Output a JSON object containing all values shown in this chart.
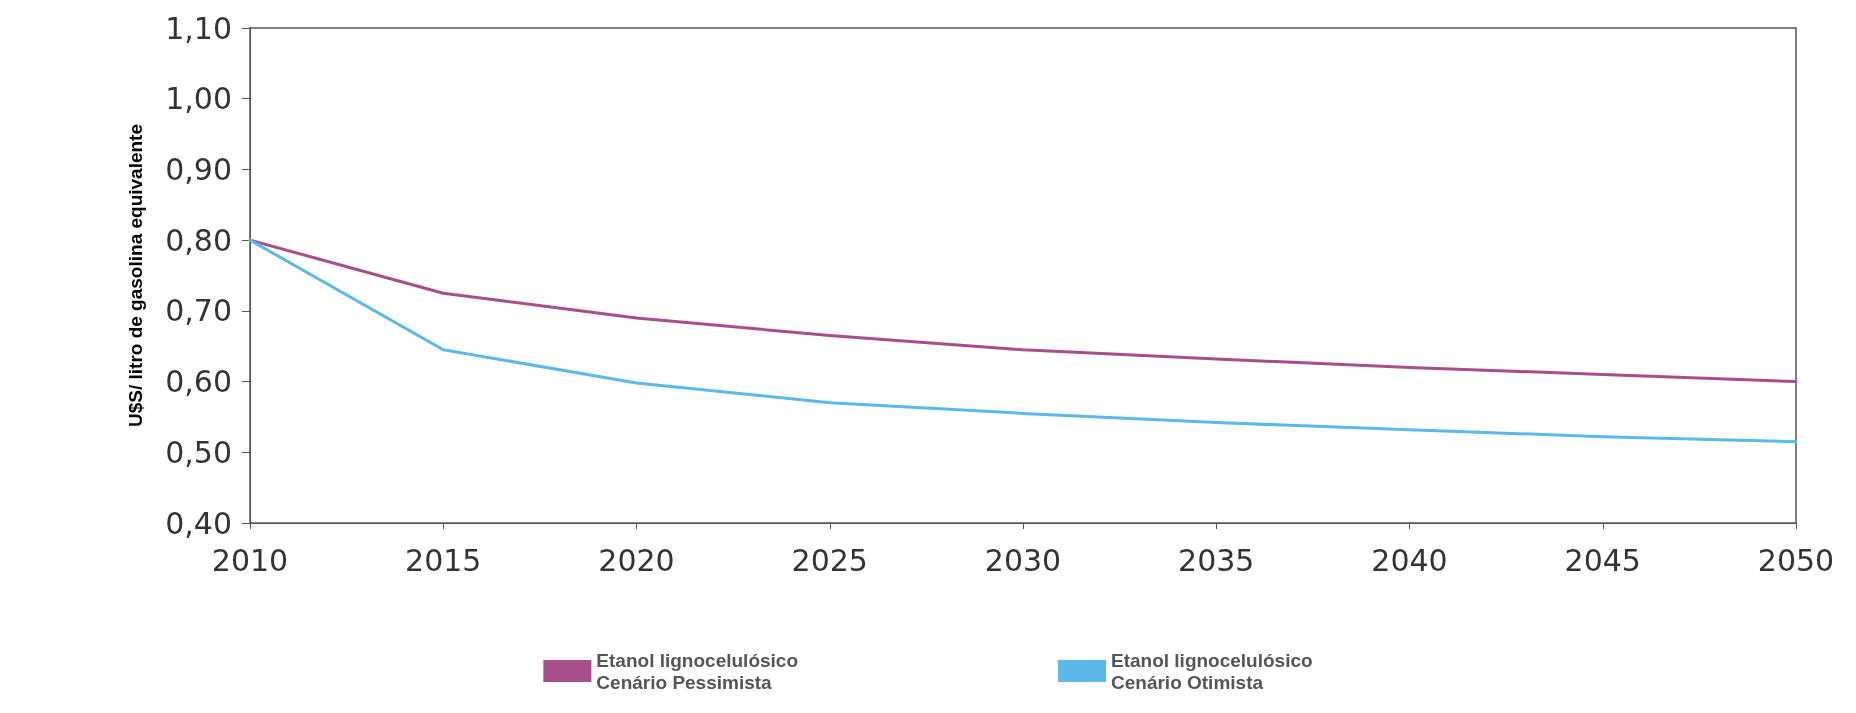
{
  "chart_data": {
    "type": "line",
    "ylabel": "U$S/ litro de gasolina equivalente",
    "x": [
      2010,
      2015,
      2020,
      2025,
      2030,
      2035,
      2040,
      2045,
      2050
    ],
    "series": [
      {
        "name": "Etanol lignocelulósico\nCenário Pessimista",
        "color": "#a64d8a",
        "values": [
          0.8,
          0.725,
          0.69,
          0.665,
          0.645,
          0.632,
          0.62,
          0.61,
          0.6
        ]
      },
      {
        "name": "Etanol lignocelulósico\nCenário Otimista",
        "color": "#5bb8e8",
        "values": [
          0.8,
          0.645,
          0.598,
          0.57,
          0.555,
          0.542,
          0.532,
          0.522,
          0.515
        ]
      }
    ],
    "xlim": [
      2010,
      2050
    ],
    "xticks": [
      2010,
      2015,
      2020,
      2025,
      2030,
      2035,
      2040,
      2045,
      2050
    ],
    "ylim": [
      0.4,
      1.1
    ],
    "yticks": [
      {
        "value": 0.4,
        "label": "0,40"
      },
      {
        "value": 0.5,
        "label": "0,50"
      },
      {
        "value": 0.6,
        "label": "0,60"
      },
      {
        "value": 0.7,
        "label": "0,70"
      },
      {
        "value": 0.8,
        "label": "0,80"
      },
      {
        "value": 0.9,
        "label": "0,90"
      },
      {
        "value": 1.0,
        "label": "1,00"
      },
      {
        "value": 1.1,
        "label": "1,10"
      }
    ],
    "grid": false,
    "legend": "bottom",
    "marker": "none",
    "line_style": "solid"
  }
}
